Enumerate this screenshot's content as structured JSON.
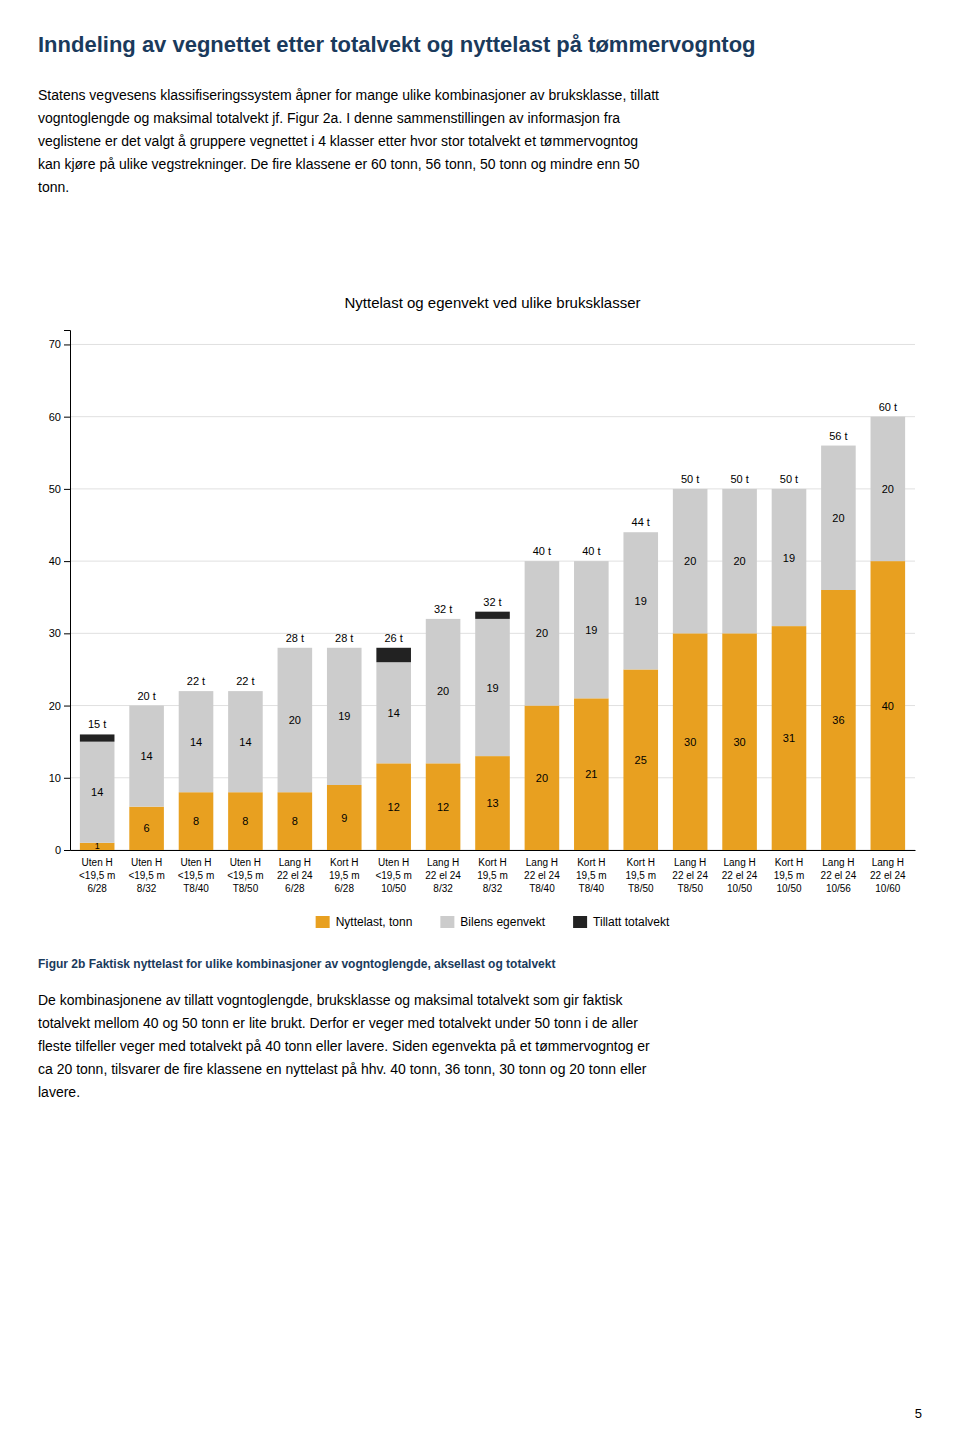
{
  "page_title": "Inndeling av vegnettet etter totalvekt og nyttelast på tømmervogntog",
  "intro_text": [
    "Statens vegvesens klassifiseringssystem åpner for mange ulike kombinasjoner av bruksklasse, tillatt",
    "vogntoglengde og maksimal totalvekt jf. Figur 2a. I denne sammenstillingen av informasjon fra",
    "veglistene er det valgt å gruppere vegnettet i 4 klasser etter hvor stor totalvekt et tømmervogntog",
    "kan kjøre på ulike vegstrekninger. De fire klassene er 60 tonn, 56 tonn, 50 tonn og mindre enn 50",
    "tonn."
  ],
  "chart_data": {
    "type": "bar",
    "stacked": true,
    "grid": true,
    "title": "Nyttelast og egenvekt ved ulike bruksklasser",
    "categories": [
      [
        "Uten H",
        "<19,5 m",
        "6/28"
      ],
      [
        "Uten H",
        "<19,5 m",
        "8/32"
      ],
      [
        "Uten H",
        "<19,5 m",
        "T8/40"
      ],
      [
        "Uten H",
        "<19,5 m",
        "T8/50"
      ],
      [
        "Lang H",
        "22 el 24",
        "6/28"
      ],
      [
        "Kort H",
        "19,5 m",
        "6/28"
      ],
      [
        "Uten H",
        "<19,5 m",
        "10/50"
      ],
      [
        "Lang H",
        "22 el 24",
        "8/32"
      ],
      [
        "Kort H",
        "19,5 m",
        "8/32"
      ],
      [
        "Lang H",
        "22 el 24",
        "T8/40"
      ],
      [
        "Kort H",
        "19,5 m",
        "T8/40"
      ],
      [
        "Kort H",
        "19,5 m",
        "T8/50"
      ],
      [
        "Lang H",
        "22 el 24",
        "T8/50"
      ],
      [
        "Lang H",
        "22 el 24",
        "10/50"
      ],
      [
        "Kort H",
        "19,5 m",
        "10/50"
      ],
      [
        "Lang H",
        "22 el 24",
        "10/56"
      ],
      [
        "Lang H",
        "22 el 24",
        "10/60"
      ]
    ],
    "series": [
      {
        "name": "Nyttelast, tonn",
        "color": "#E8A020",
        "data_labels": true,
        "values": [
          1,
          6,
          8,
          8,
          8,
          9,
          12,
          12,
          13,
          20,
          21,
          25,
          30,
          30,
          31,
          36,
          40
        ]
      },
      {
        "name": "Bilens egenvekt",
        "color": "#CCCCCC",
        "data_labels": true,
        "values": [
          14,
          14,
          14,
          14,
          20,
          19,
          14,
          20,
          19,
          20,
          19,
          19,
          20,
          20,
          19,
          20,
          20
        ]
      },
      {
        "name": "Tillatt totalvekt",
        "color": "#222222",
        "values": [
          1,
          0,
          0,
          0,
          0,
          0,
          2,
          0,
          1,
          0,
          0,
          0,
          0,
          0,
          0,
          0,
          0
        ]
      }
    ],
    "annotations": [
      "15 t",
      "20 t",
      "22 t",
      "22 t",
      "28 t",
      "28 t",
      "26 t",
      "32 t",
      "32 t",
      "40 t",
      "40 t",
      "44 t",
      "50 t",
      "50 t",
      "50 t",
      "56 t",
      "60 t"
    ],
    "ylim": [
      0,
      72
    ],
    "yticks": [
      0,
      10,
      20,
      30,
      40,
      50,
      60,
      70
    ]
  },
  "caption_text": "Figur 2b Faktisk nyttelast for ulike kombinasjoner av vogntoglengde, aksellast og totalvekt",
  "body_text": [
    "De kombinasjonene av tillatt vogntoglengde, bruksklasse og maksimal totalvekt som gir faktisk",
    "totalvekt mellom 40 og 50 tonn er lite brukt. Derfor er veger med totalvekt under 50 tonn i de aller",
    "fleste tilfeller veger med totalvekt på 40 tonn eller lavere. Siden egenvekta på et tømmervogntog er",
    "ca 20 tonn, tilsvarer de fire klassene en nyttelast på hhv. 40 tonn, 36 tonn, 30 tonn og 20 tonn eller",
    "lavere."
  ],
  "page_number": "5"
}
